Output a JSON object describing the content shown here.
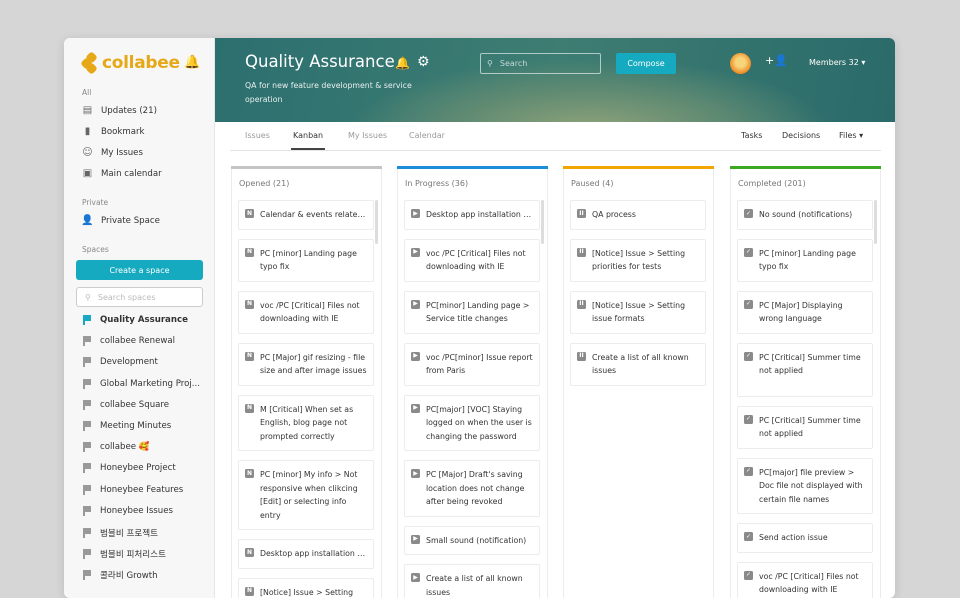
{
  "sidebar": {
    "logo": "collabee",
    "section_all": "All",
    "all_items": [
      {
        "label": "Updates (21)",
        "icon": "updates-icon"
      },
      {
        "label": "Bookmark",
        "icon": "bookmark-icon"
      },
      {
        "label": "My Issues",
        "icon": "smiley-icon"
      },
      {
        "label": "Main calendar",
        "icon": "calendar-icon"
      }
    ],
    "section_private": "Private",
    "private_item": "Private Space",
    "section_spaces": "Spaces",
    "create_label": "Create a space",
    "search_placeholder": "Search spaces",
    "spaces": [
      "Quality Assurance",
      "collabee Renewal",
      "Development",
      "Global Marketing Proj...",
      "collabee Square",
      "Meeting Minutes",
      "collabee 🥰",
      "Honeybee Project",
      "Honeybee Features",
      "Honeybee Issues",
      "범블비 프로젝트",
      "범블비 피처리스트",
      "콜라비 Growth"
    ]
  },
  "header": {
    "title": "Quality Assurance",
    "description": "QA for new feature development & service operation",
    "search_placeholder": "Search",
    "compose_label": "Compose",
    "members_label": "Members 32 ▾"
  },
  "tabs": [
    "Issues",
    "Kanban",
    "My Issues",
    "Calendar"
  ],
  "active_tab": "Kanban",
  "right_tabs": [
    "Tasks",
    "Decisions",
    "Files ▾"
  ],
  "columns": [
    {
      "title": "Opened (21)",
      "color": "#c4c4c4",
      "icon": "N",
      "icon_name": "new-issue-icon",
      "cards": [
        "Calendar & events related settings",
        "PC [minor] Landing page typo fix",
        "voc /PC [Critical] Files not downloading with IE",
        "PC [Major] gif resizing - file size and after image issues",
        "M [Critical] When set as English, blog page not prompted correctly",
        "PC [minor] My info > Not responsive when clikcing [Edit] or selecting info entry",
        "Desktop app installation guide",
        "[Notice] Issue > Setting issue formats"
      ]
    },
    {
      "title": "In Progress (36)",
      "color": "#1a8fd8",
      "icon": "▶",
      "icon_name": "in-progress-icon",
      "cards": [
        "Desktop app installation guide",
        "voc /PC [Critical] Files not downloading with IE",
        "PC[minor] Landing page > Service title changes",
        "voc /PC[minor] Issue report from Paris",
        "PC[major] [VOC] Staying logged on when the user is changing the password",
        "PC [Major] Draft's saving location does not change after being revoked",
        "Small sound (notification)",
        "Create a list of all known issues"
      ]
    },
    {
      "title": "Paused (4)",
      "color": "#f0a500",
      "icon": "II",
      "icon_name": "paused-icon",
      "cards": [
        "QA process",
        "[Notice] Issue > Setting priorities for tests",
        "[Notice] Issue > Setting issue formats",
        "Create a list of all known issues"
      ]
    },
    {
      "title": "Completed (201)",
      "color": "#3aa820",
      "icon": "✓",
      "icon_name": "completed-icon",
      "cards": [
        "No sound (notifications)",
        "PC [minor] Landing page typo fix",
        "PC [Major] Displaying wrong language",
        "PC [Critical] Summer time not applied",
        "PC [Critical] Summer time not applied",
        "PC[major] file preview  > Doc file not displayed with certain file names",
        "Send action issue",
        "voc /PC [Critical] Files not downloading with IE"
      ]
    }
  ]
}
